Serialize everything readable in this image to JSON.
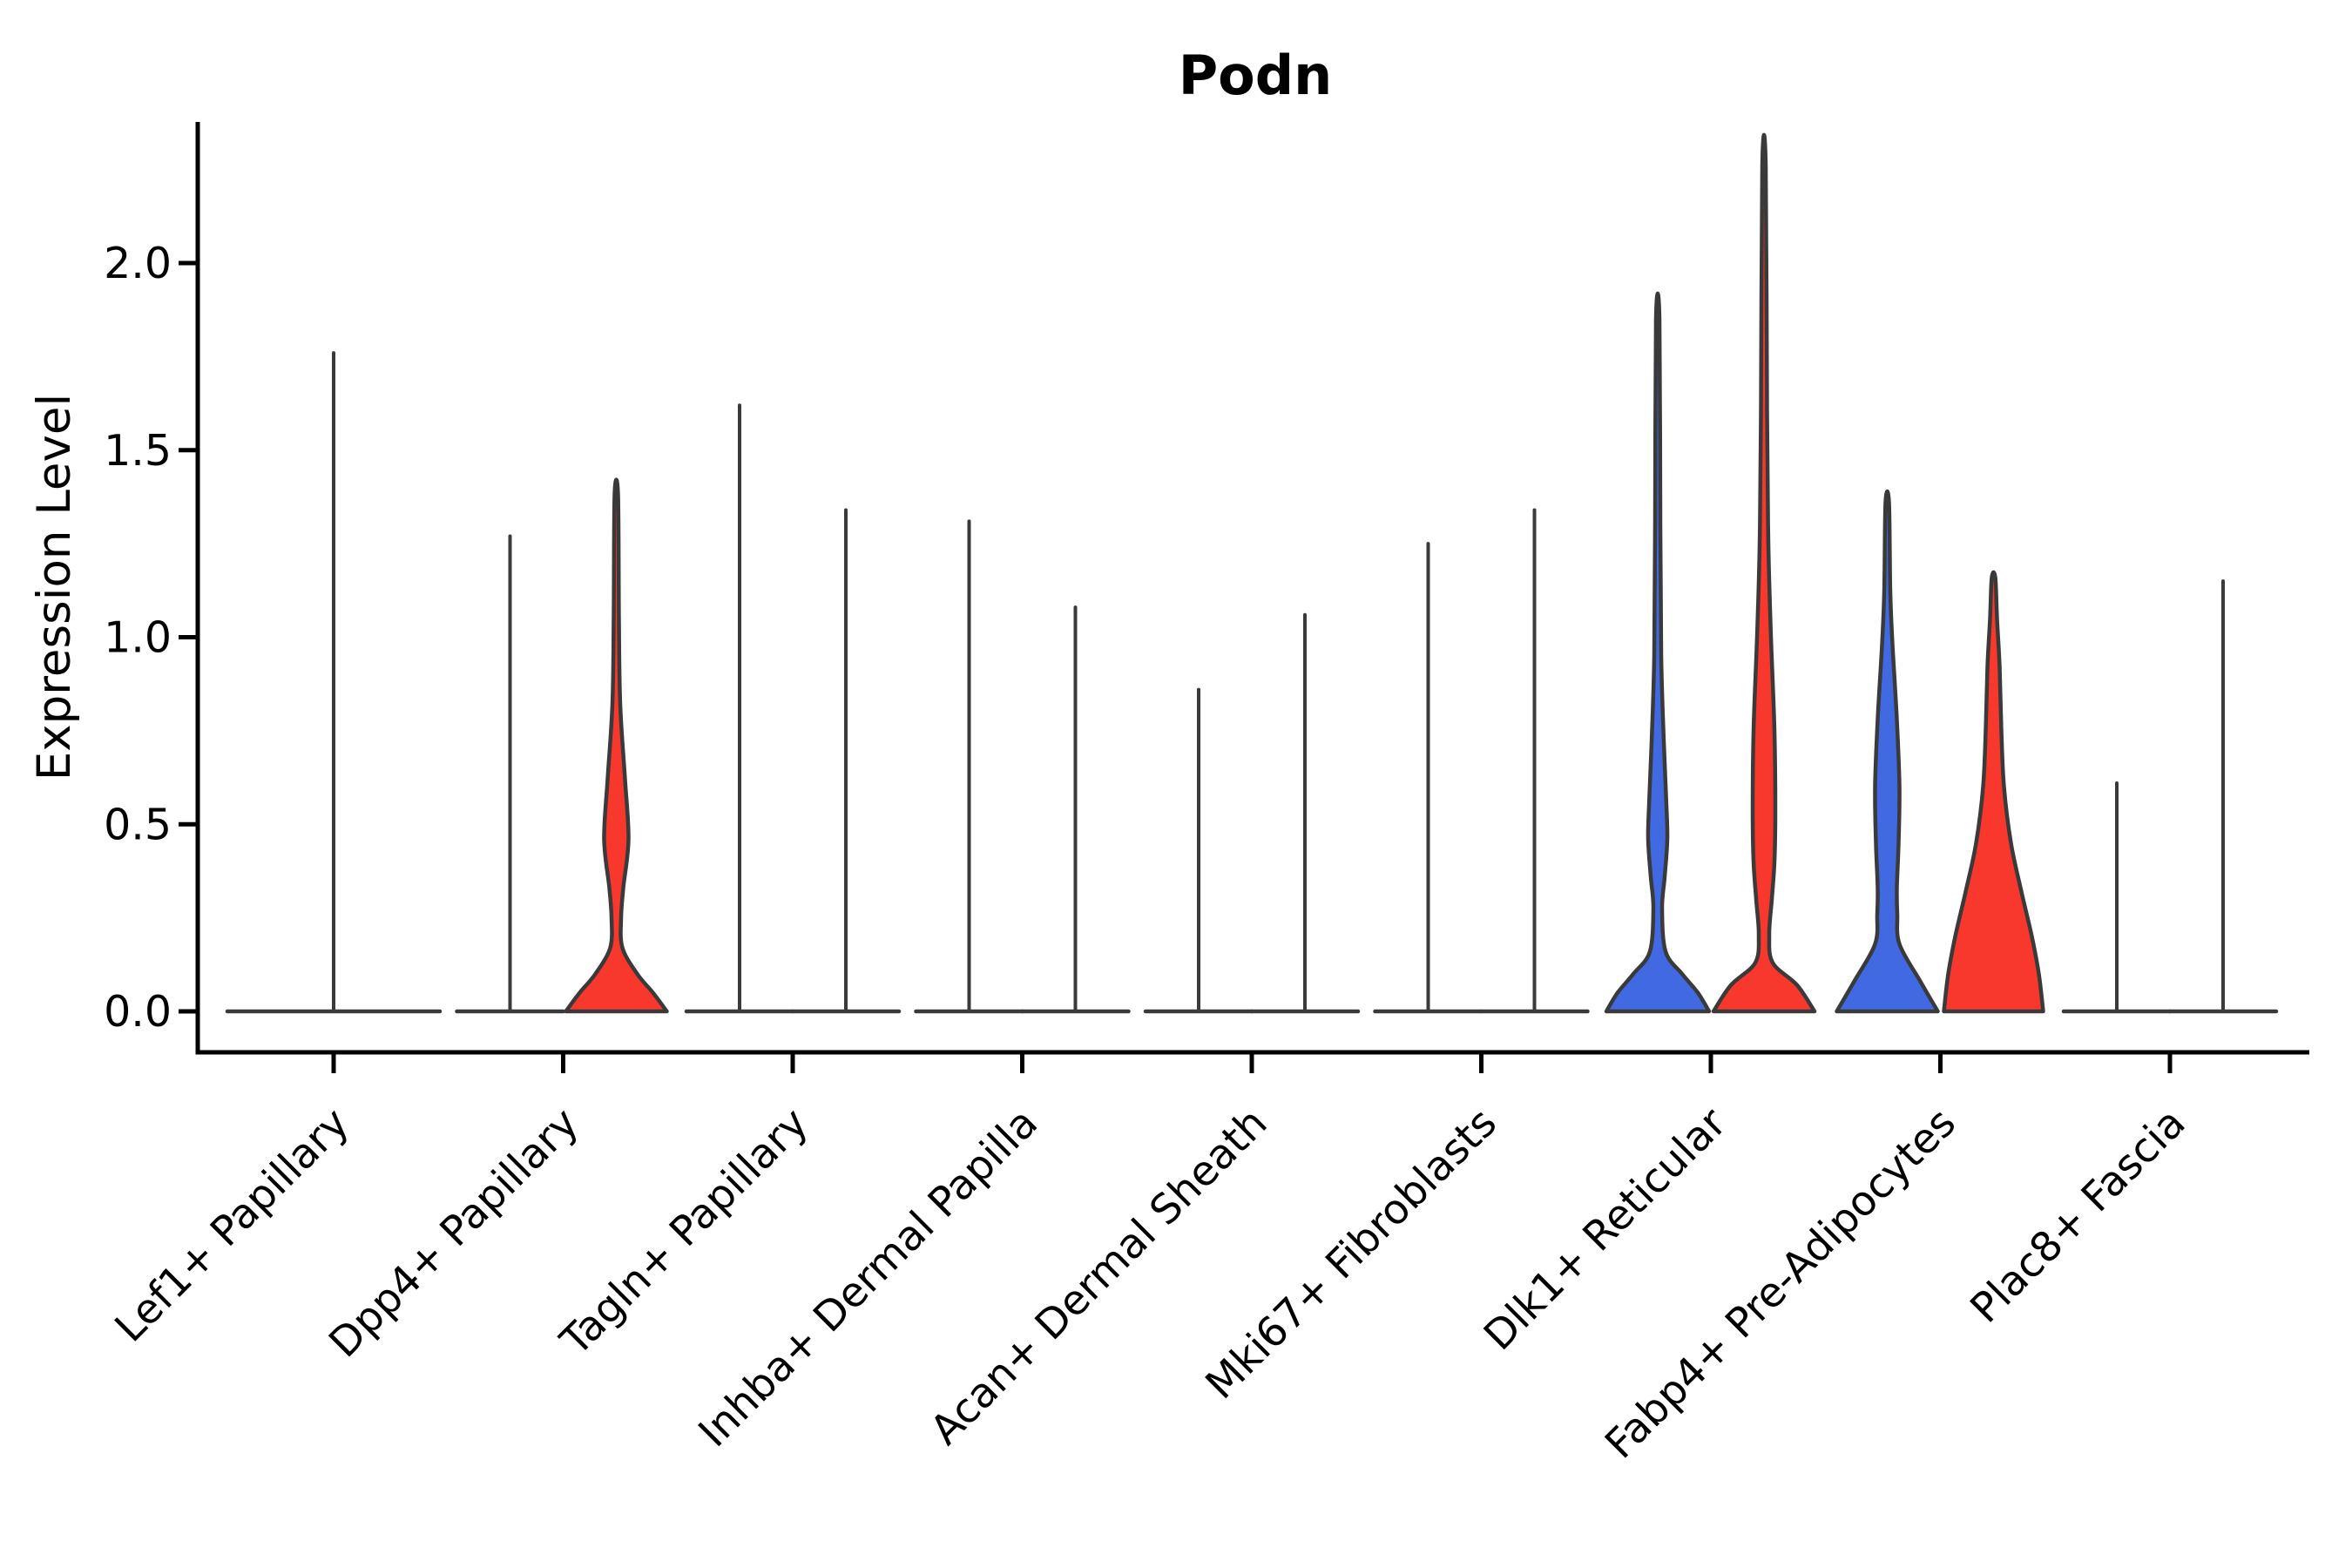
{
  "chart_data": {
    "type": "violin",
    "title": "Podn",
    "ylabel": "Expression Level",
    "xlabel": "",
    "grid": false,
    "legend_position": "none",
    "ylim": [
      -0.06,
      2.38
    ],
    "yticks": {
      "values": [
        0.0,
        0.5,
        1.0,
        1.5,
        2.0
      ],
      "labels": [
        "0.0",
        "0.5",
        "1.0",
        "1.5",
        "2.0"
      ]
    },
    "categories": [
      "Lef1+ Papillary",
      "Dpp4+ Papillary",
      "Tagln+ Papillary",
      "Inhba+ Dermal Papilla",
      "Acan+ Dermal Sheath",
      "Mki67+ Fibroblasts",
      "Dlk1+ Reticular",
      "Fabp4+ Pre-Adipocytes",
      "Plac8+ Fascia"
    ],
    "colors": {
      "blue": "#4169E1",
      "red": "#F8382C",
      "outline": "#3A3A3A",
      "axis": "#000000"
    },
    "violins": [
      {
        "category_index": 0,
        "category": "Lef1+ Papillary",
        "position": "center",
        "fill": "none",
        "max_expression": 1.76
      },
      {
        "category_index": 1,
        "category": "Dpp4+ Papillary",
        "position": "left",
        "fill": "none",
        "max_expression": 1.27
      },
      {
        "category_index": 1,
        "category": "Dpp4+ Papillary",
        "position": "right",
        "fill": "red",
        "max_expression": 1.38,
        "profile": [
          [
            1.38,
            2
          ],
          [
            1.05,
            3
          ],
          [
            0.82,
            4.5
          ],
          [
            0.62,
            10
          ],
          [
            0.46,
            14
          ],
          [
            0.33,
            8
          ],
          [
            0.25,
            5.5
          ],
          [
            0.17,
            7
          ],
          [
            0.1,
            24
          ],
          [
            0.05,
            42
          ],
          [
            0,
            58
          ]
        ]
      },
      {
        "category_index": 2,
        "category": "Tagln+ Papillary",
        "position": "left",
        "fill": "none",
        "max_expression": 1.62
      },
      {
        "category_index": 2,
        "category": "Tagln+ Papillary",
        "position": "right",
        "fill": "none",
        "max_expression": 1.34
      },
      {
        "category_index": 3,
        "category": "Inhba+ Dermal Papilla",
        "position": "left",
        "fill": "none",
        "max_expression": 1.31
      },
      {
        "category_index": 3,
        "category": "Inhba+ Dermal Papilla",
        "position": "right",
        "fill": "none",
        "max_expression": 1.08
      },
      {
        "category_index": 4,
        "category": "Acan+ Dermal Sheath",
        "position": "left",
        "fill": "none",
        "max_expression": 0.86
      },
      {
        "category_index": 4,
        "category": "Acan+ Dermal Sheath",
        "position": "right",
        "fill": "none",
        "max_expression": 1.06
      },
      {
        "category_index": 5,
        "category": "Mki67+ Fibroblasts",
        "position": "left",
        "fill": "none",
        "max_expression": 1.25
      },
      {
        "category_index": 5,
        "category": "Mki67+ Fibroblasts",
        "position": "right",
        "fill": "none",
        "max_expression": 1.34
      },
      {
        "category_index": 6,
        "category": "Dlk1+ Reticular",
        "position": "left",
        "fill": "blue",
        "max_expression": 1.85,
        "profile": [
          [
            1.85,
            2
          ],
          [
            1.3,
            3
          ],
          [
            0.95,
            4
          ],
          [
            0.72,
            7
          ],
          [
            0.55,
            10
          ],
          [
            0.46,
            11
          ],
          [
            0.36,
            8
          ],
          [
            0.275,
            5
          ],
          [
            0.16,
            9
          ],
          [
            0.1,
            28
          ],
          [
            0.05,
            46
          ],
          [
            0,
            59
          ]
        ]
      },
      {
        "category_index": 6,
        "category": "Dlk1+ Reticular",
        "position": "right",
        "fill": "red",
        "max_expression": 2.26,
        "profile": [
          [
            2.26,
            2
          ],
          [
            1.6,
            3.5
          ],
          [
            1.25,
            5
          ],
          [
            1.0,
            8
          ],
          [
            0.75,
            12
          ],
          [
            0.54,
            13
          ],
          [
            0.4,
            12
          ],
          [
            0.3,
            9
          ],
          [
            0.205,
            6
          ],
          [
            0.13,
            10
          ],
          [
            0.07,
            38
          ],
          [
            0,
            58
          ]
        ]
      },
      {
        "category_index": 7,
        "category": "Fabp4+ Pre-Adipocytes",
        "position": "left",
        "fill": "blue",
        "max_expression": 1.36,
        "profile": [
          [
            1.36,
            2
          ],
          [
            1.12,
            3.5
          ],
          [
            0.98,
            6
          ],
          [
            0.78,
            11
          ],
          [
            0.6,
            14
          ],
          [
            0.45,
            13
          ],
          [
            0.33,
            11
          ],
          [
            0.26,
            11.5
          ],
          [
            0.18,
            14
          ],
          [
            0.08,
            38
          ],
          [
            0,
            58
          ]
        ]
      },
      {
        "category_index": 7,
        "category": "Fabp4+ Pre-Adipocytes",
        "position": "right",
        "fill": "red",
        "max_expression": 1.16,
        "profile": [
          [
            1.16,
            2
          ],
          [
            1.05,
            4
          ],
          [
            0.92,
            7
          ],
          [
            0.75,
            9
          ],
          [
            0.6,
            12
          ],
          [
            0.45,
            20
          ],
          [
            0.32,
            32
          ],
          [
            0.2,
            44
          ],
          [
            0.1,
            52
          ],
          [
            0,
            57
          ]
        ]
      },
      {
        "category_index": 8,
        "category": "Plac8+ Fascia",
        "position": "left",
        "fill": "none",
        "max_expression": 0.61
      },
      {
        "category_index": 8,
        "category": "Plac8+ Fascia",
        "position": "right",
        "fill": "none",
        "max_expression": 1.15
      }
    ]
  }
}
